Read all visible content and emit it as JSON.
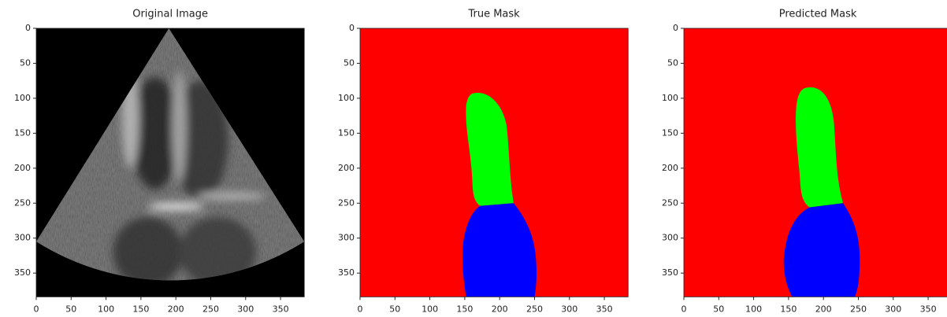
{
  "chart_data": [
    {
      "type": "image",
      "title": "Original Image",
      "xlim": [
        0,
        384
      ],
      "ylim": [
        384,
        0
      ],
      "xticks": [
        0,
        50,
        100,
        150,
        200,
        250,
        300,
        350
      ],
      "yticks": [
        0,
        50,
        100,
        150,
        200,
        250,
        300,
        350
      ]
    },
    {
      "type": "image",
      "title": "True Mask",
      "xlim": [
        0,
        384
      ],
      "ylim": [
        384,
        0
      ],
      "xticks": [
        0,
        50,
        100,
        150,
        200,
        250,
        300,
        350
      ],
      "yticks": [
        0,
        50,
        100,
        150,
        200,
        250,
        300,
        350
      ]
    },
    {
      "type": "image",
      "title": "Predicted Mask",
      "xlim": [
        0,
        384
      ],
      "ylim": [
        384,
        0
      ],
      "xticks": [
        0,
        50,
        100,
        150,
        200,
        250,
        300,
        350
      ],
      "yticks": [
        0,
        50,
        100,
        150,
        200,
        250,
        300,
        350
      ]
    }
  ]
}
